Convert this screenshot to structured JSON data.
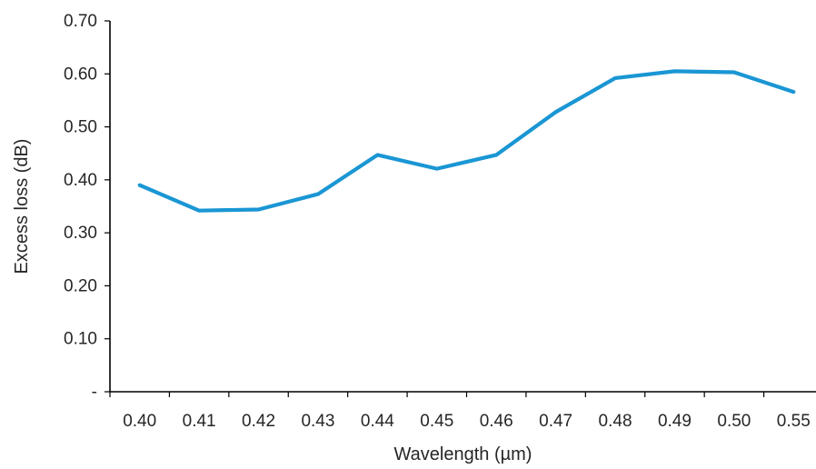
{
  "chart_data": {
    "type": "line",
    "xlabel": "Wavelength (µm)",
    "ylabel": "Excess loss (dB)",
    "categories": [
      "0.40",
      "0.41",
      "0.42",
      "0.43",
      "0.44",
      "0.45",
      "0.46",
      "0.47",
      "0.48",
      "0.49",
      "0.50",
      "0.55"
    ],
    "ylim": [
      0,
      0.7
    ],
    "y_ticks": [
      "-",
      "0.10",
      "0.20",
      "0.30",
      "0.40",
      "0.50",
      "0.60",
      "0.70"
    ],
    "y_tick_values": [
      0,
      0.1,
      0.2,
      0.3,
      0.4,
      0.5,
      0.6,
      0.7
    ],
    "grid": false,
    "legend": "none",
    "series": [
      {
        "values": [
          0.39,
          0.342,
          0.344,
          0.373,
          0.447,
          0.421,
          0.447,
          0.528,
          0.592,
          0.605,
          0.603,
          0.566
        ],
        "color": "#1a96d4"
      }
    ]
  }
}
